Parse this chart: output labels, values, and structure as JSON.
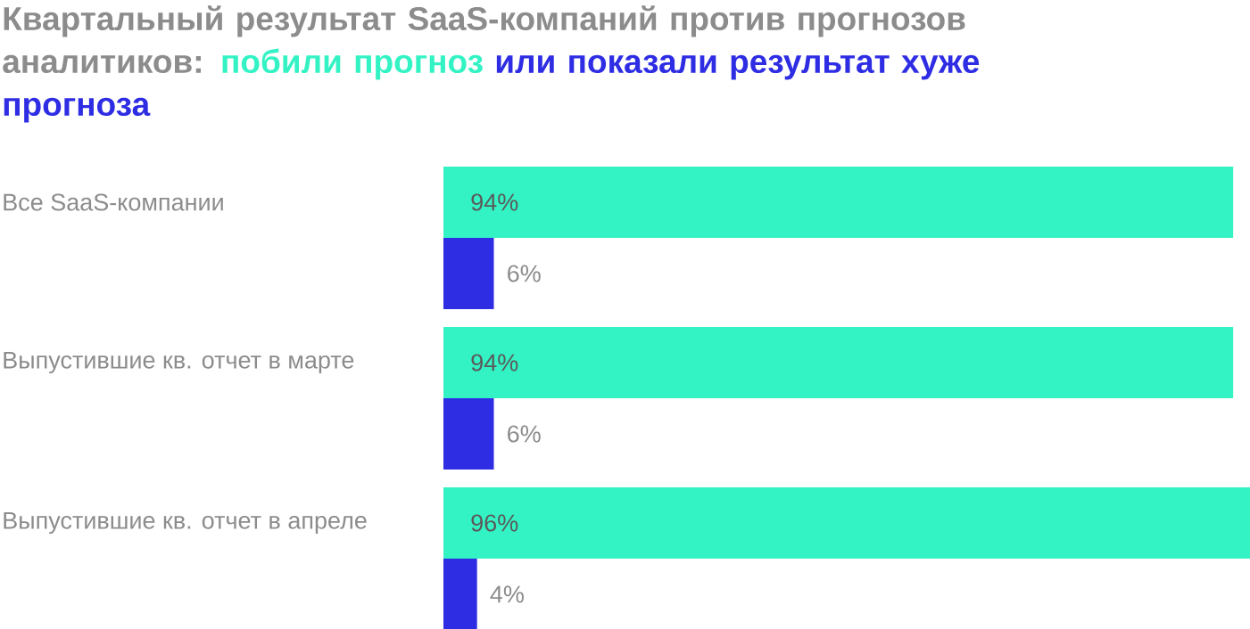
{
  "chart_data": {
    "type": "bar",
    "orientation": "horizontal",
    "title": "Квартальный результат SaaS-компаний против прогнозов аналитиков:",
    "categories": [
      "Все SaaS-компании",
      "Выпустившие кв. отчет в марте",
      "Выпустившие кв. отчет в апреле"
    ],
    "series": [
      {
        "name": "побили прогноз",
        "color": "#33f3c4",
        "values": [
          94,
          94,
          96
        ],
        "value_labels": [
          "94%",
          "94%",
          "96%"
        ]
      },
      {
        "name": "или показали результат хуже прогноза",
        "color": "#2e2de3",
        "values": [
          6,
          6,
          4
        ],
        "value_labels": [
          "6%",
          "6%",
          "4%"
        ]
      }
    ],
    "xlim": [
      0,
      96
    ]
  }
}
